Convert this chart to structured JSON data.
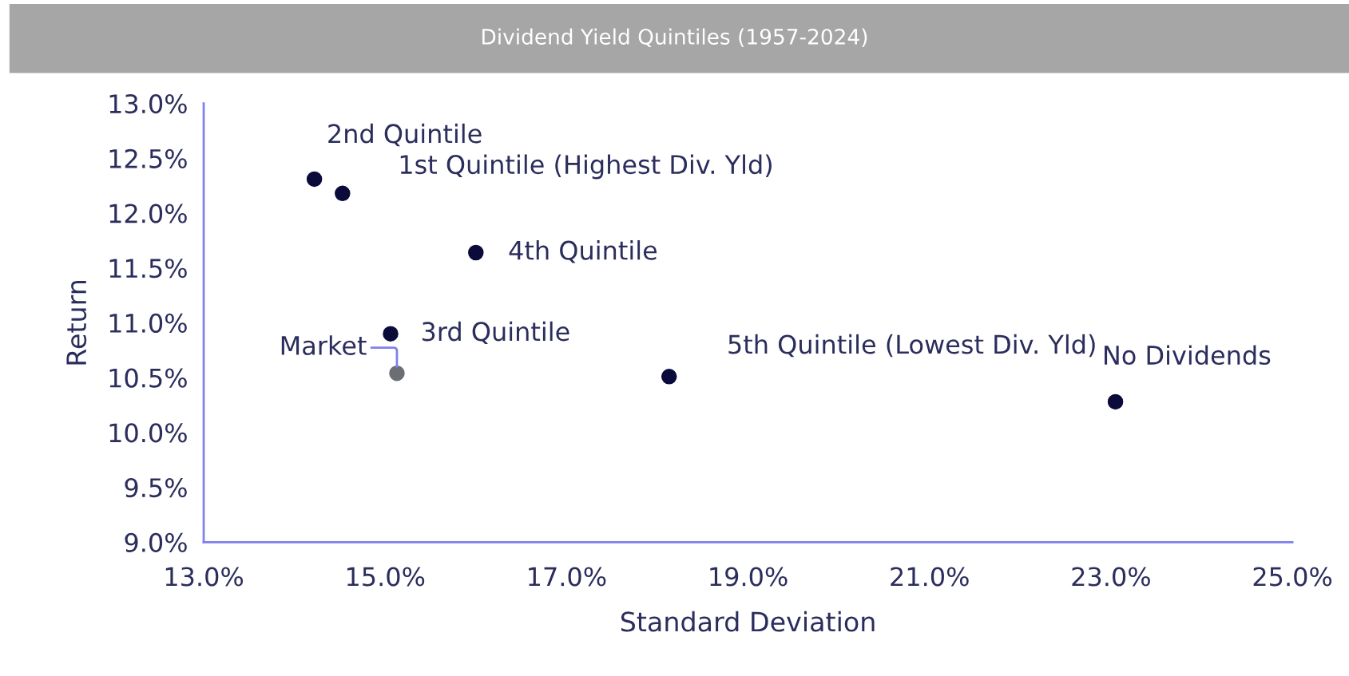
{
  "chart_data": {
    "type": "scatter",
    "title": "Dividend Yield Quintiles (1957-2024)",
    "xlabel": "Standard Deviation",
    "ylabel": "Return",
    "x": [
      14.22,
      14.53,
      16.0,
      15.06,
      15.13,
      18.13,
      23.05
    ],
    "values": [
      12.31,
      12.18,
      11.64,
      10.9,
      10.54,
      10.51,
      10.28
    ],
    "colors": [
      "#0b0b3b",
      "#0b0b3b",
      "#0b0b3b",
      "#0b0b3b",
      "#6b6f73",
      "#0b0b3b",
      "#0b0b3b"
    ],
    "annotations": [
      {
        "text": "2nd Quintile",
        "x": 14.22,
        "y": 12.31
      },
      {
        "text": "1st Quintile (Highest Div. Yld)",
        "x": 14.53,
        "y": 12.18
      },
      {
        "text": "4th Quintile",
        "x": 16.0,
        "y": 11.64
      },
      {
        "text": "3rd Quintile",
        "x": 15.06,
        "y": 10.9
      },
      {
        "text": "Market",
        "x": 15.13,
        "y": 10.54
      },
      {
        "text": "5th Quintile (Lowest Div. Yld)",
        "x": 18.13,
        "y": 10.51
      },
      {
        "text": "No Dividends",
        "x": 23.05,
        "y": 10.28
      }
    ],
    "xlim": [
      13,
      25
    ],
    "ylim": [
      9,
      13
    ],
    "xticks": [
      {
        "value": 13,
        "label": "13.0%"
      },
      {
        "value": 15,
        "label": "15.0%"
      },
      {
        "value": 17,
        "label": "17.0%"
      },
      {
        "value": 19,
        "label": "19.0%"
      },
      {
        "value": 21,
        "label": "21.0%"
      },
      {
        "value": 23,
        "label": "23.0%"
      },
      {
        "value": 25,
        "label": "25.0%"
      }
    ],
    "yticks": [
      {
        "value": 9,
        "label": "9.0%"
      },
      {
        "value": 9.5,
        "label": "9.5%"
      },
      {
        "value": 10,
        "label": "10.0%"
      },
      {
        "value": 10.5,
        "label": "10.5%"
      },
      {
        "value": 11,
        "label": "11.0%"
      },
      {
        "value": 11.5,
        "label": "11.5%"
      },
      {
        "value": 12,
        "label": "12.0%"
      },
      {
        "value": 12.5,
        "label": "12.5%"
      },
      {
        "value": 13,
        "label": "13.0%"
      }
    ],
    "grid": false,
    "legend": false,
    "marker": "circle"
  }
}
